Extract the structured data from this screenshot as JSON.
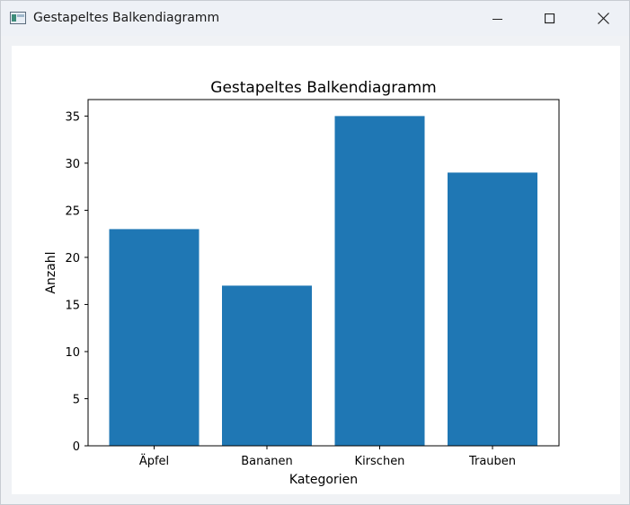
{
  "window": {
    "title": "Gestapeltes Balkendiagramm",
    "icon": "app-window-icon",
    "controls": [
      "minimize-icon",
      "maximize-icon",
      "close-icon"
    ]
  },
  "colors": {
    "bar": "#1f77b4",
    "axis": "#000000",
    "titlebar": "#eef1f6",
    "canvas": "#ffffff"
  },
  "chart_data": {
    "type": "bar",
    "title": "Gestapeltes Balkendiagramm",
    "xlabel": "Kategorien",
    "ylabel": "Anzahl",
    "categories": [
      "Äpfel",
      "Bananen",
      "Kirschen",
      "Trauben"
    ],
    "values": [
      23,
      17,
      35,
      29
    ],
    "ylim": [
      0,
      36.75
    ],
    "yticks": [
      0,
      5,
      10,
      15,
      20,
      25,
      30,
      35
    ],
    "grid": false,
    "legend": "none"
  }
}
